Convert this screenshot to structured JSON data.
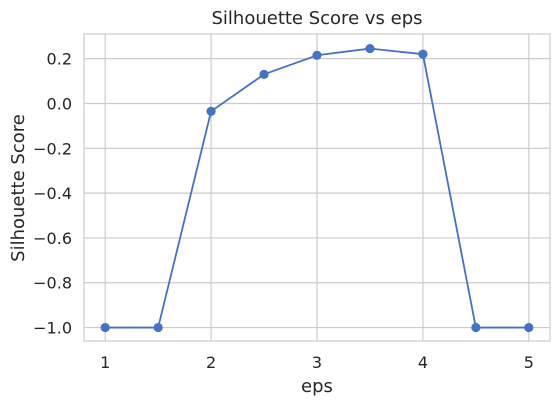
{
  "chart_data": {
    "type": "line",
    "title": "Silhouette Score vs eps",
    "xlabel": "eps",
    "ylabel": "Silhouette Score",
    "xlim": [
      0.8,
      5.2
    ],
    "ylim": [
      -1.06,
      0.31
    ],
    "x_ticks": [
      1,
      2,
      3,
      4,
      5
    ],
    "y_ticks": [
      0.2,
      0.0,
      -0.2,
      -0.4,
      -0.6,
      -0.8,
      -1.0
    ],
    "x_tick_labels": [
      "1",
      "2",
      "3",
      "4",
      "5"
    ],
    "y_tick_labels": [
      "0.2",
      "0.0",
      "−0.2",
      "−0.4",
      "−0.6",
      "−0.8",
      "−1.0"
    ],
    "grid": true,
    "series": [
      {
        "x": [
          1.0,
          1.5,
          2.0,
          2.5,
          3.0,
          3.5,
          4.0,
          4.5,
          5.0
        ],
        "values": [
          -1.0,
          -1.0,
          -0.035,
          0.13,
          0.215,
          0.245,
          0.22,
          -1.0,
          -1.0
        ],
        "color": "#4472c4",
        "marker": "circle"
      }
    ]
  }
}
